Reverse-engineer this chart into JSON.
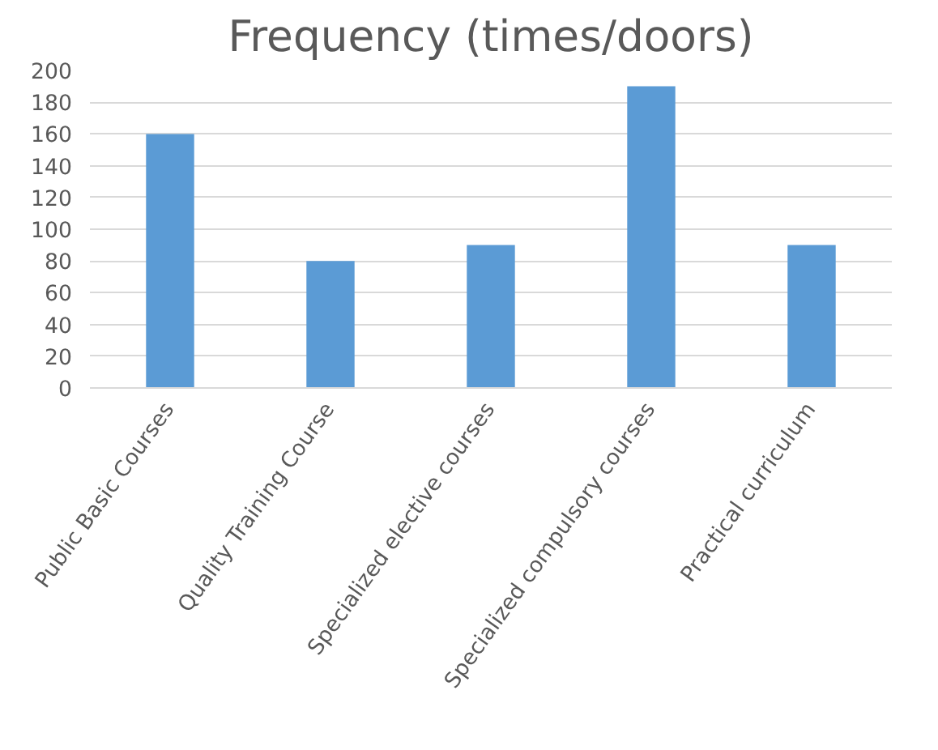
{
  "chart_data": {
    "type": "bar",
    "title": "Frequency (times/doors)",
    "categories": [
      "Public Basic Courses",
      "Quality Training Course",
      "Specialized elective courses",
      "Specialized compulsory courses",
      "Practical curriculum"
    ],
    "values": [
      160,
      80,
      90,
      190,
      90
    ],
    "color": "#5b9bd5",
    "ylim": [
      0,
      200
    ],
    "yticks": [
      0,
      20,
      40,
      60,
      80,
      100,
      120,
      140,
      160,
      180,
      200
    ],
    "grid": "y"
  }
}
